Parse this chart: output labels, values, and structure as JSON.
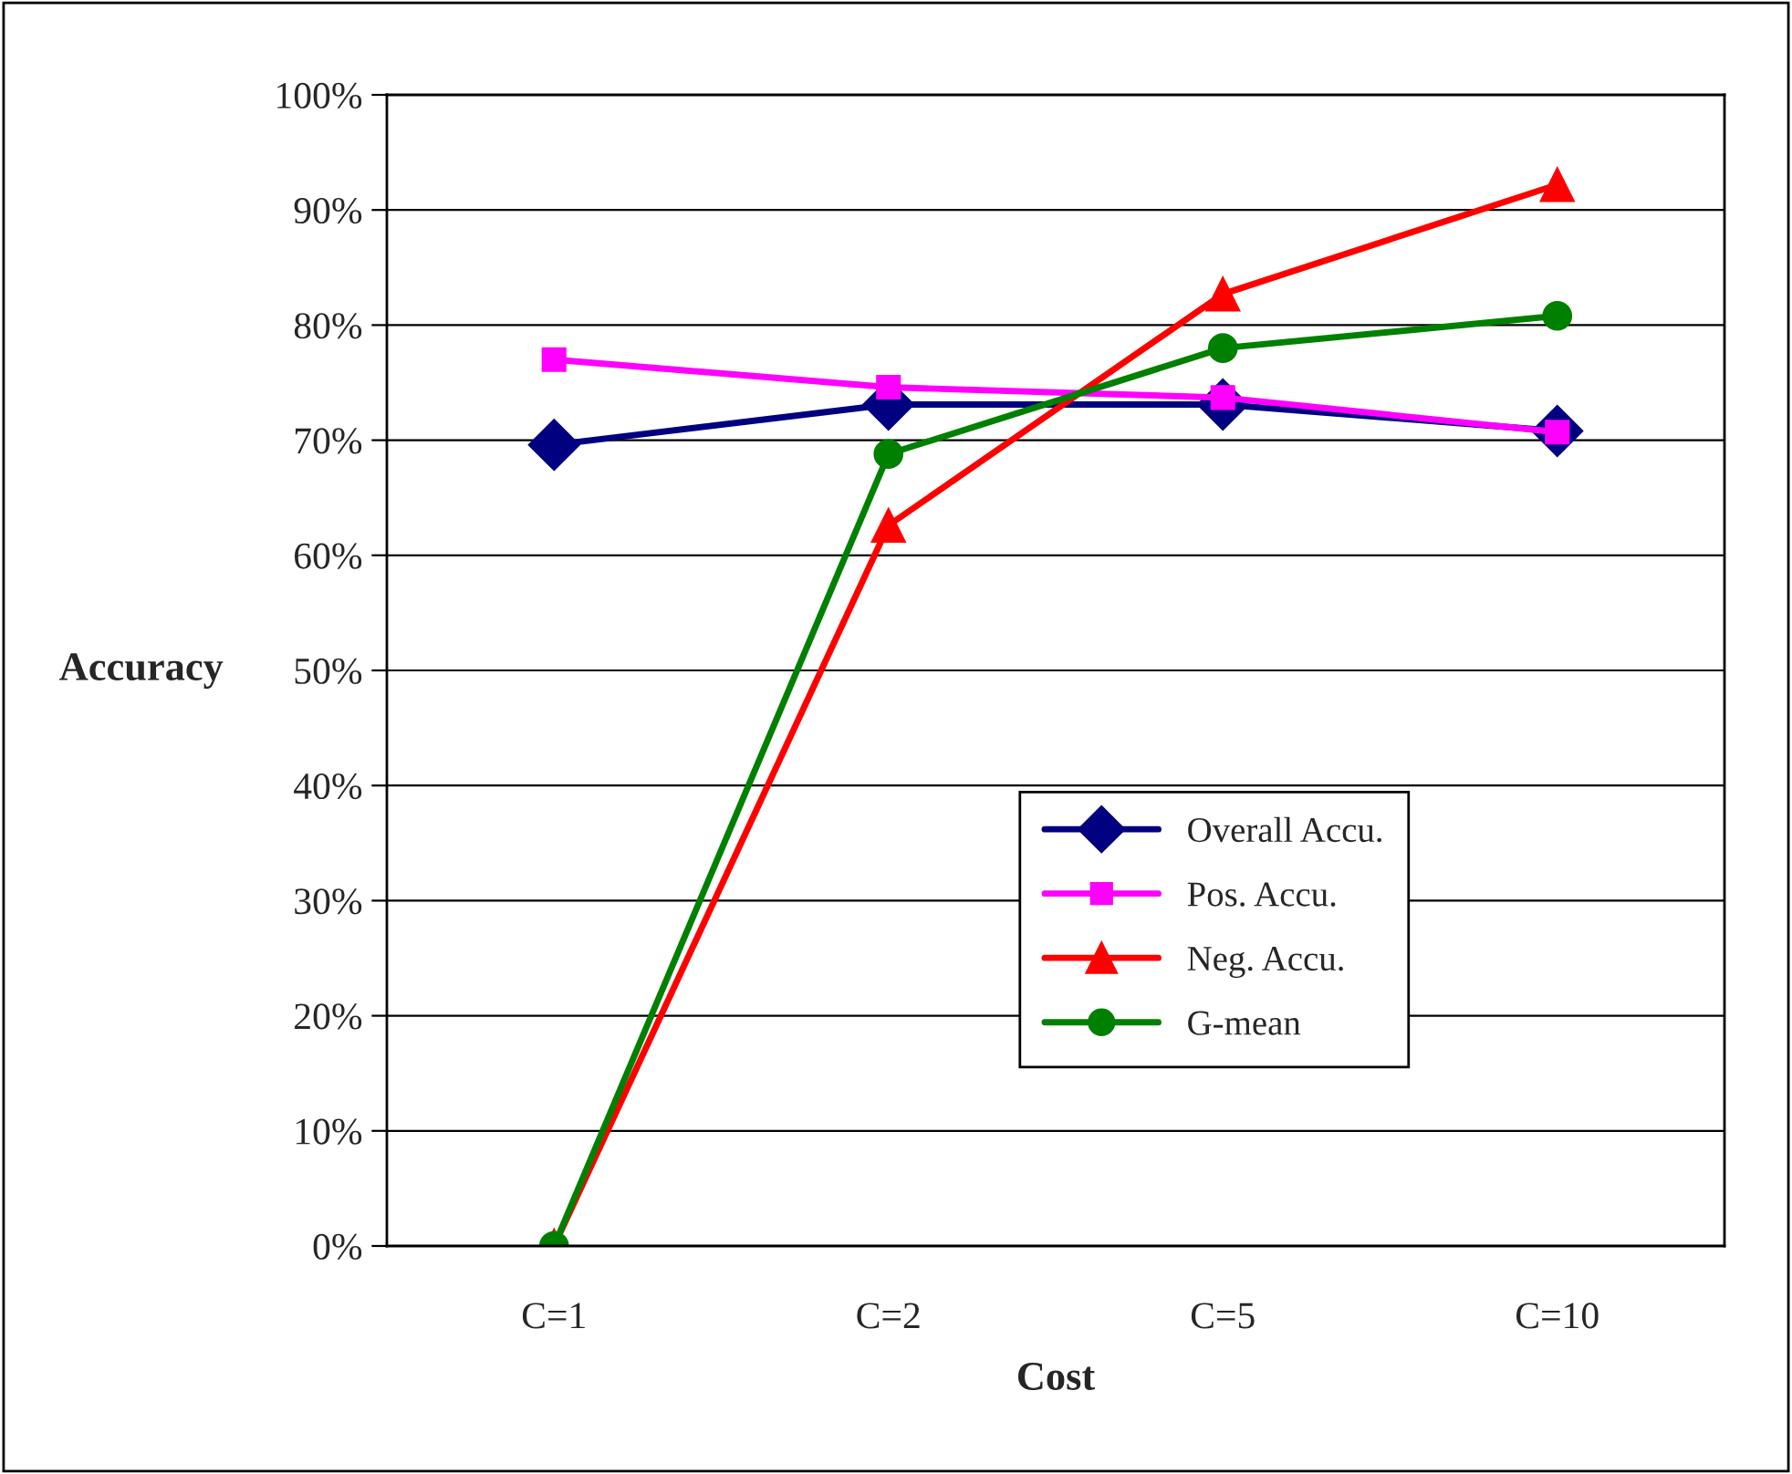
{
  "chart_data": {
    "type": "line",
    "xlabel": "Cost",
    "ylabel": "Accuracy",
    "categories": [
      "C=1",
      "C=2",
      "C=5",
      "C=10"
    ],
    "series": [
      {
        "name": "Overall Accu.",
        "color": "#000080",
        "marker": "diamond",
        "values": [
          69.6,
          73.1,
          73.1,
          70.8
        ]
      },
      {
        "name": "Pos. Accu.",
        "color": "#ff00ff",
        "marker": "square",
        "values": [
          77.0,
          74.6,
          73.7,
          70.7
        ]
      },
      {
        "name": "Neg. Accu.",
        "color": "#ff0000",
        "marker": "triangle",
        "values": [
          0,
          62.6,
          82.7,
          92.2
        ]
      },
      {
        "name": "G-mean",
        "color": "#008000",
        "marker": "circle",
        "values": [
          0,
          68.8,
          78.0,
          80.8
        ]
      }
    ],
    "ylim": [
      0,
      100
    ],
    "yticks": [
      {
        "value": 0,
        "label": "0%"
      },
      {
        "value": 10,
        "label": "10%"
      },
      {
        "value": 20,
        "label": "20%"
      },
      {
        "value": 30,
        "label": "30%"
      },
      {
        "value": 40,
        "label": "40%"
      },
      {
        "value": 50,
        "label": "50%"
      },
      {
        "value": 60,
        "label": "60%"
      },
      {
        "value": 70,
        "label": "70%"
      },
      {
        "value": 80,
        "label": "80%"
      },
      {
        "value": 90,
        "label": "90%"
      },
      {
        "value": 100,
        "label": "100%"
      }
    ],
    "grid": "y",
    "legend": "bottom right"
  }
}
